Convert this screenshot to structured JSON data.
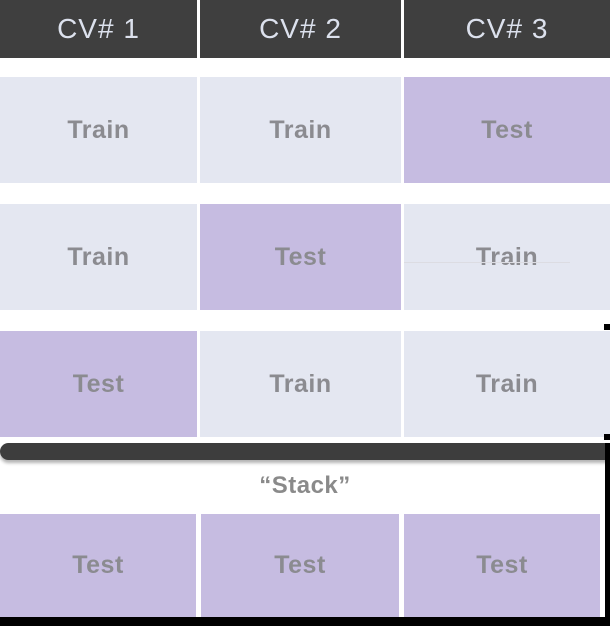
{
  "colors": {
    "header_bg": "#3f3f3f",
    "header_text": "#dce1ed",
    "train_bg": "#e4e7f1",
    "test_bg": "#c6bce1",
    "cell_text": "#8b8b90",
    "bar": "#3d3d3d",
    "stack_text": "#8a8a8a",
    "backdrop": "#000000"
  },
  "header": {
    "columns": [
      {
        "label": "CV# 1"
      },
      {
        "label": "CV# 2"
      },
      {
        "label": "CV# 3"
      }
    ]
  },
  "grid": {
    "rows": [
      {
        "cells": [
          {
            "label": "Train",
            "type": "train"
          },
          {
            "label": "Train",
            "type": "train"
          },
          {
            "label": "Test",
            "type": "test"
          }
        ]
      },
      {
        "cells": [
          {
            "label": "Train",
            "type": "train"
          },
          {
            "label": "Test",
            "type": "test"
          },
          {
            "label": "Train",
            "type": "train"
          }
        ]
      },
      {
        "cells": [
          {
            "label": "Test",
            "type": "test"
          },
          {
            "label": "Train",
            "type": "train"
          },
          {
            "label": "Train",
            "type": "train"
          }
        ]
      }
    ]
  },
  "stack": {
    "label": "“Stack”"
  },
  "stack_row": {
    "cells": [
      {
        "label": "Test",
        "type": "test"
      },
      {
        "label": "Test",
        "type": "test"
      },
      {
        "label": "Test",
        "type": "test"
      }
    ]
  }
}
